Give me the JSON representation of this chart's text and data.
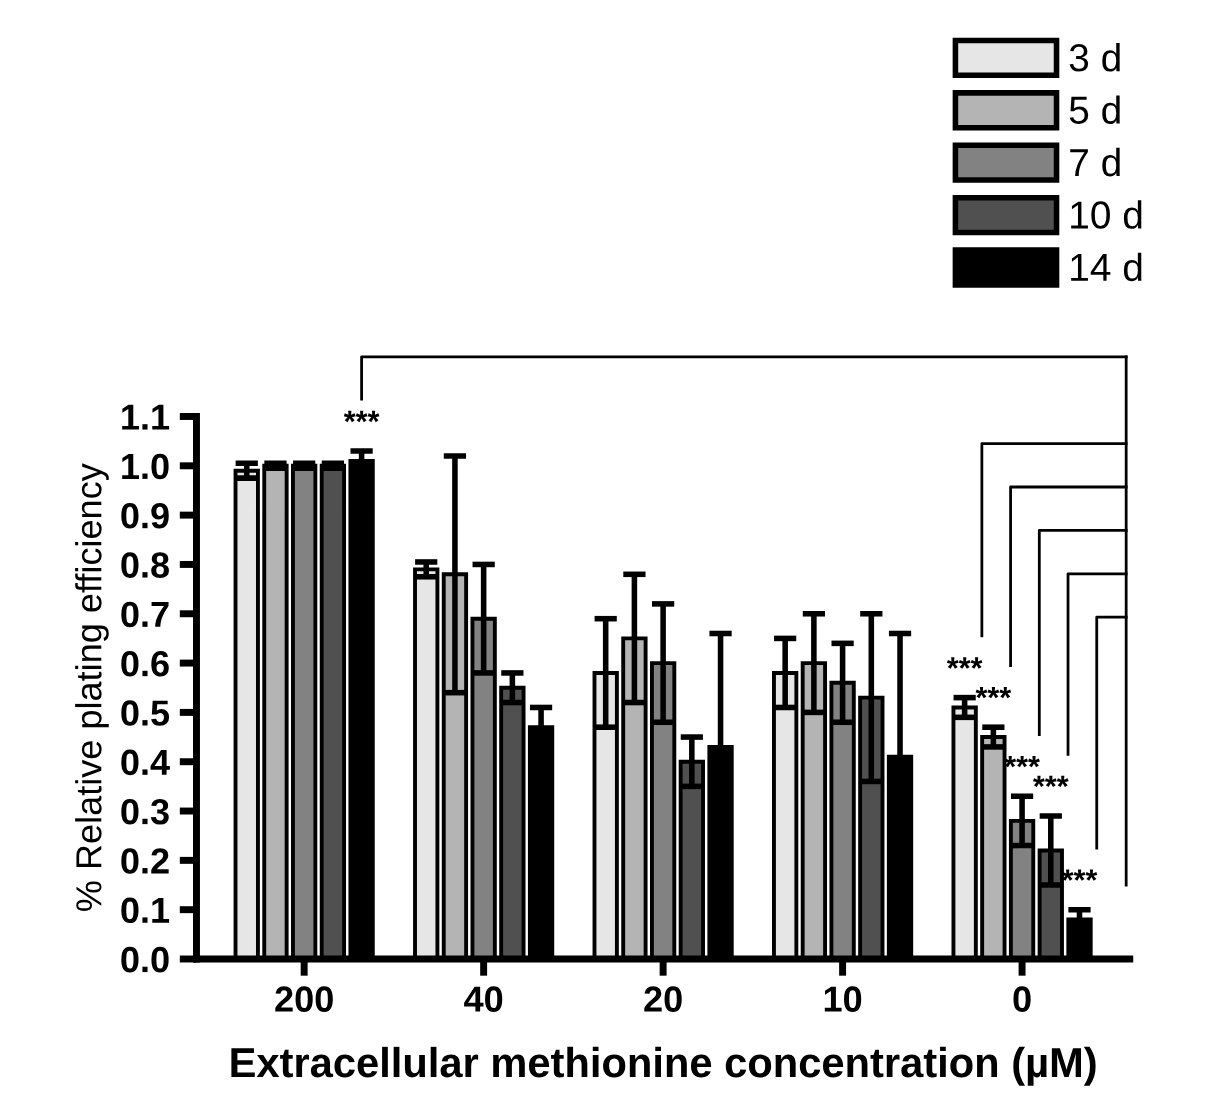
{
  "chart_data": {
    "type": "bar",
    "categories": [
      "200",
      "40",
      "20",
      "10",
      "0"
    ],
    "xlabel": "Extracellular methionine concentration (µM)",
    "ylabel": "% Relative plating efficiency",
    "ylim": [
      0,
      1.1
    ],
    "yticks": [
      {
        "value": 0,
        "label": "0.0"
      },
      0.1,
      0.2,
      0.3,
      0.4,
      0.5,
      0.6,
      0.7,
      0.8,
      0.9,
      {
        "value": 1,
        "label": "1.0"
      },
      1.1
    ],
    "legend": "top right",
    "grid": false,
    "series": [
      {
        "name": "3 d",
        "color": "#e6e6e6",
        "values": [
          0.99,
          0.79,
          0.58,
          0.58,
          0.51
        ],
        "errors": [
          0.015,
          0.015,
          0.11,
          0.07,
          0.02
        ]
      },
      {
        "name": "5 d",
        "color": "#b4b4b4",
        "values": [
          1.0,
          0.78,
          0.65,
          0.6,
          0.45
        ],
        "errors": [
          0.005,
          0.24,
          0.13,
          0.1,
          0.02
        ]
      },
      {
        "name": "7 d",
        "color": "#828282",
        "values": [
          1.0,
          0.69,
          0.6,
          0.56,
          0.28
        ],
        "errors": [
          0.005,
          0.11,
          0.12,
          0.08,
          0.05
        ]
      },
      {
        "name": "10 d",
        "color": "#505050",
        "values": [
          1.0,
          0.55,
          0.4,
          0.53,
          0.22
        ],
        "errors": [
          0.005,
          0.03,
          0.05,
          0.17,
          0.07
        ]
      },
      {
        "name": "14 d",
        "color": "#000000",
        "values": [
          1.01,
          0.47,
          0.43,
          0.41,
          0.08
        ],
        "errors": [
          0.02,
          0.04,
          0.23,
          0.25,
          0.02
        ]
      }
    ],
    "annotations": [
      "***",
      "***",
      "***",
      "***",
      "***",
      "***"
    ]
  }
}
